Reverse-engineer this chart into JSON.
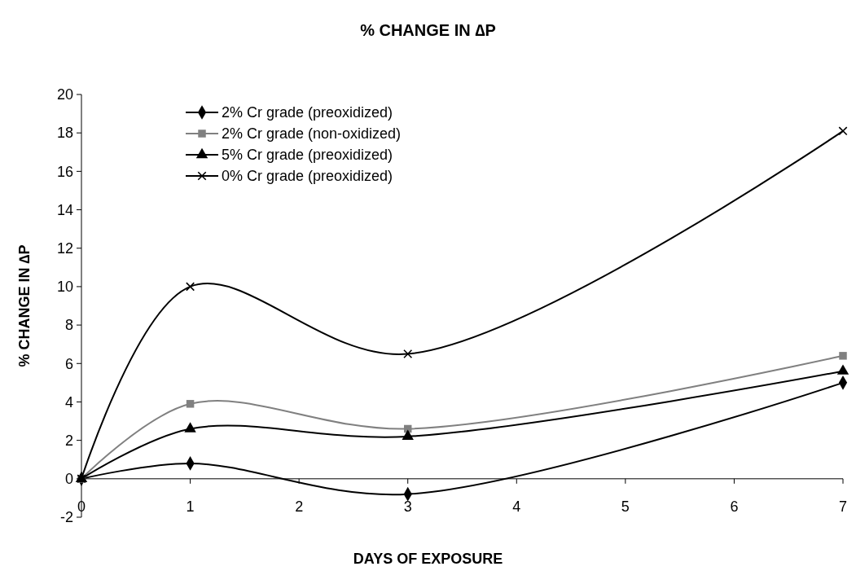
{
  "chart_data": {
    "type": "line",
    "title": "% CHANGE IN ∆P",
    "xlabel": "DAYS OF EXPOSURE",
    "ylabel": "% CHANGE IN ∆P",
    "x": [
      0,
      1,
      3,
      7
    ],
    "xlim": [
      0,
      7
    ],
    "xticks": [
      0,
      1,
      2,
      3,
      4,
      5,
      6,
      7
    ],
    "ylim": [
      -2,
      20
    ],
    "yticks": [
      -2,
      0,
      2,
      4,
      6,
      8,
      10,
      12,
      14,
      16,
      18,
      20
    ],
    "grid": false,
    "legend": "top left",
    "line_style": "solid",
    "series": [
      {
        "name": "2% Cr grade (preoxidized)",
        "color": "#000000",
        "marker": "diamond",
        "values": [
          0,
          0.8,
          -0.8,
          5.0
        ]
      },
      {
        "name": "2% Cr grade (non-oxidized)",
        "color": "#808080",
        "marker": "square",
        "values": [
          0,
          3.9,
          2.6,
          6.4
        ]
      },
      {
        "name": "5% Cr grade (preoxidized)",
        "color": "#000000",
        "marker": "triangle",
        "values": [
          0,
          2.6,
          2.2,
          5.6
        ]
      },
      {
        "name": "0% Cr grade (preoxidized)",
        "color": "#000000",
        "marker": "cross",
        "values": [
          0,
          10,
          6.5,
          18.1
        ]
      }
    ]
  }
}
